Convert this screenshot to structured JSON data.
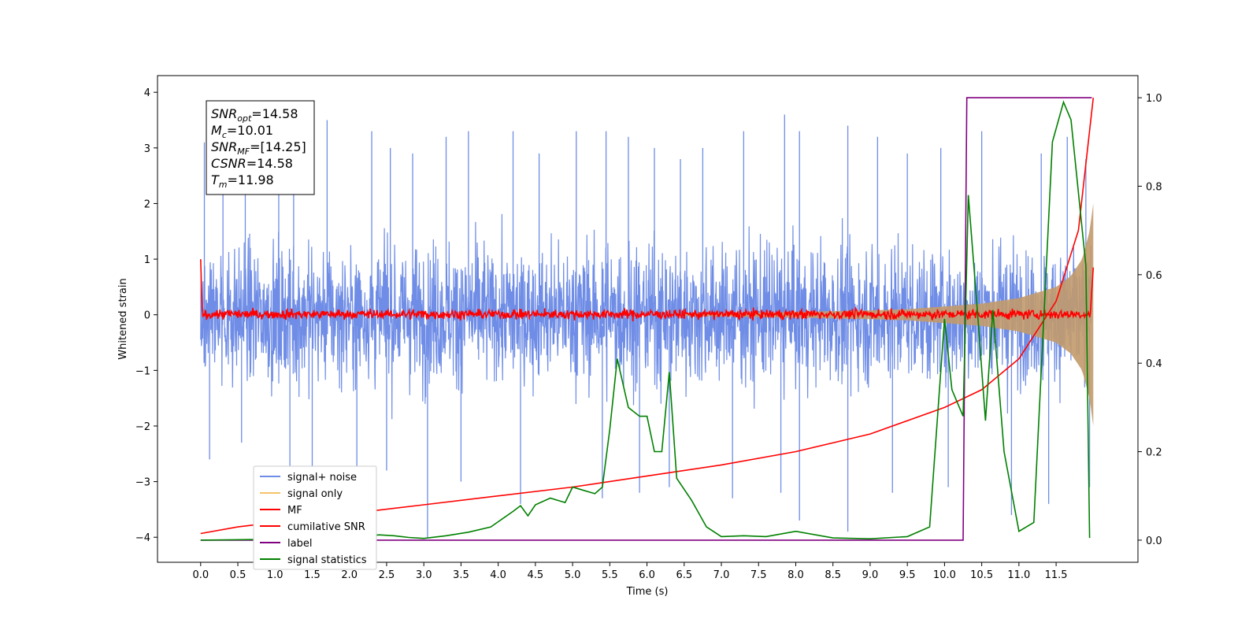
{
  "chart_data": {
    "type": "line",
    "xlabel": "Time (s)",
    "ylabel": "Whitened strain",
    "xlim": [
      -0.58,
      12.6
    ],
    "ylim": [
      -4.45,
      4.3
    ],
    "ylim_right": [
      -0.05,
      1.05
    ],
    "x_ticks": [
      "0.0",
      "0.5",
      "1.0",
      "1.5",
      "2.0",
      "2.5",
      "3.0",
      "3.5",
      "4.0",
      "4.5",
      "5.0",
      "5.5",
      "6.0",
      "6.5",
      "7.0",
      "7.5",
      "8.0",
      "8.5",
      "9.0",
      "9.5",
      "10.0",
      "10.5",
      "11.0",
      "11.5"
    ],
    "y_ticks": [
      "4",
      "3",
      "2",
      "1",
      "0",
      "−1",
      "−2",
      "−3",
      "−4"
    ],
    "y_right_ticks": [
      "1.0",
      "0.8",
      "0.6",
      "0.4",
      "0.2",
      "0.0"
    ],
    "legend": {
      "placement": "lower-left",
      "entries": [
        "signal+ noise",
        "signal only",
        "MF",
        "cumilative SNR",
        "label",
        "signal statistics"
      ]
    },
    "annotation": [
      {
        "sym": "SNR",
        "sub": "opt",
        "val": "=14.58"
      },
      {
        "sym": "M",
        "sub": "c",
        "val": "=10.01"
      },
      {
        "sym": "SNR",
        "sub": "MF",
        "val": "=[14.25]"
      },
      {
        "sym": "CSNR",
        "sub": "",
        "val": "=14.58"
      },
      {
        "sym": "T",
        "sub": "m",
        "val": "=11.98"
      }
    ],
    "colors": {
      "noise": "#6f8de6",
      "signal": "#f5c36b",
      "envelope": "#c29a6c",
      "mf": "#ff0000",
      "csnr": "#ff0000",
      "label": "#800080",
      "stats": "#008000"
    },
    "series": [
      {
        "name": "signal+ noise",
        "axis": "left",
        "note": "whitened noise, amplitude about 1; visible peaks/troughs",
        "peaks": [
          [
            0.05,
            3.1
          ],
          [
            0.3,
            2.9
          ],
          [
            0.6,
            3.4
          ],
          [
            1.05,
            3.6
          ],
          [
            1.25,
            3.0
          ],
          [
            1.7,
            3.5
          ],
          [
            2.3,
            3.3
          ],
          [
            2.55,
            3.0
          ],
          [
            2.85,
            2.9
          ],
          [
            3.3,
            3.2
          ],
          [
            3.6,
            3.3
          ],
          [
            4.2,
            3.3
          ],
          [
            4.55,
            2.9
          ],
          [
            5.05,
            3.3
          ],
          [
            5.45,
            3.3
          ],
          [
            5.75,
            3.2
          ],
          [
            6.1,
            3.0
          ],
          [
            6.45,
            2.8
          ],
          [
            6.75,
            3.0
          ],
          [
            7.3,
            3.3
          ],
          [
            7.85,
            3.6
          ],
          [
            8.05,
            3.3
          ],
          [
            8.7,
            3.4
          ],
          [
            9.1,
            3.2
          ],
          [
            9.5,
            2.9
          ],
          [
            9.95,
            3.0
          ],
          [
            10.5,
            3.3
          ],
          [
            11.3,
            2.9
          ],
          [
            11.65,
            3.2
          ],
          [
            11.9,
            2.8
          ]
        ],
        "troughs": [
          [
            0.12,
            -2.6
          ],
          [
            0.55,
            -2.3
          ],
          [
            1.2,
            -3.2
          ],
          [
            1.5,
            -3.0
          ],
          [
            2.1,
            -3.1
          ],
          [
            2.5,
            -2.8
          ],
          [
            3.05,
            -4.0
          ],
          [
            3.5,
            -3.0
          ],
          [
            4.3,
            -3.4
          ],
          [
            5.4,
            -3.3
          ],
          [
            5.9,
            -3.2
          ],
          [
            6.3,
            -3.1
          ],
          [
            7.15,
            -3.3
          ],
          [
            7.8,
            -3.2
          ],
          [
            8.05,
            -3.7
          ],
          [
            8.7,
            -3.9
          ],
          [
            9.3,
            -3.2
          ],
          [
            10.05,
            -3.1
          ],
          [
            10.9,
            -3.6
          ],
          [
            11.4,
            -3.4
          ],
          [
            11.95,
            -3.1
          ]
        ]
      },
      {
        "name": "signal only",
        "axis": "left",
        "note": "chirp whose amplitude grows toward merger",
        "envelope": [
          [
            6.5,
            0.02
          ],
          [
            8.0,
            0.05
          ],
          [
            9.0,
            0.08
          ],
          [
            9.5,
            0.1
          ],
          [
            10.0,
            0.15
          ],
          [
            10.5,
            0.2
          ],
          [
            11.0,
            0.3
          ],
          [
            11.5,
            0.5
          ],
          [
            11.7,
            0.7
          ],
          [
            11.85,
            1.0
          ],
          [
            11.95,
            1.5
          ],
          [
            12.0,
            2.0
          ]
        ]
      },
      {
        "name": "MF",
        "axis": "left",
        "note": "matched filter output hovering near zero, starts at 1.0 at t=0",
        "start": [
          0.0,
          1.0
        ],
        "band": 0.12,
        "end": [
          12.0,
          0.85
        ]
      },
      {
        "name": "cumilative SNR",
        "axis": "right",
        "x": [
          0.0,
          0.5,
          1.0,
          2.0,
          3.0,
          4.0,
          5.0,
          6.0,
          7.0,
          8.0,
          9.0,
          10.0,
          10.5,
          11.0,
          11.5,
          11.8,
          12.0
        ],
        "y": [
          0.015,
          0.03,
          0.04,
          0.06,
          0.08,
          0.1,
          0.12,
          0.145,
          0.17,
          0.2,
          0.24,
          0.3,
          0.34,
          0.41,
          0.54,
          0.7,
          1.0
        ]
      },
      {
        "name": "label",
        "axis": "right",
        "x": [
          0.0,
          10.25,
          10.3,
          11.98
        ],
        "y": [
          0.0,
          0.0,
          1.0,
          1.0
        ]
      },
      {
        "name": "signal statistics",
        "axis": "right",
        "x": [
          0.0,
          1.0,
          2.0,
          2.4,
          2.6,
          2.8,
          3.0,
          3.3,
          3.6,
          3.9,
          4.2,
          4.3,
          4.4,
          4.5,
          4.7,
          4.9,
          5.0,
          5.1,
          5.3,
          5.4,
          5.5,
          5.6,
          5.75,
          5.9,
          6.0,
          6.1,
          6.2,
          6.3,
          6.4,
          6.6,
          6.8,
          7.0,
          7.3,
          7.6,
          8.0,
          8.5,
          9.0,
          9.5,
          9.8,
          10.0,
          10.1,
          10.25,
          10.32,
          10.45,
          10.55,
          10.65,
          10.8,
          11.0,
          11.2,
          11.45,
          11.6,
          11.7,
          11.9,
          11.95
        ],
        "y": [
          0.0,
          0.002,
          0.005,
          0.012,
          0.01,
          0.006,
          0.004,
          0.01,
          0.018,
          0.03,
          0.065,
          0.078,
          0.055,
          0.08,
          0.095,
          0.085,
          0.12,
          0.115,
          0.105,
          0.12,
          0.25,
          0.41,
          0.3,
          0.28,
          0.28,
          0.2,
          0.2,
          0.38,
          0.14,
          0.09,
          0.03,
          0.008,
          0.01,
          0.008,
          0.02,
          0.005,
          0.003,
          0.008,
          0.03,
          0.5,
          0.34,
          0.28,
          0.78,
          0.5,
          0.27,
          0.52,
          0.2,
          0.02,
          0.04,
          0.9,
          0.99,
          0.95,
          0.62,
          0.005
        ]
      }
    ]
  }
}
